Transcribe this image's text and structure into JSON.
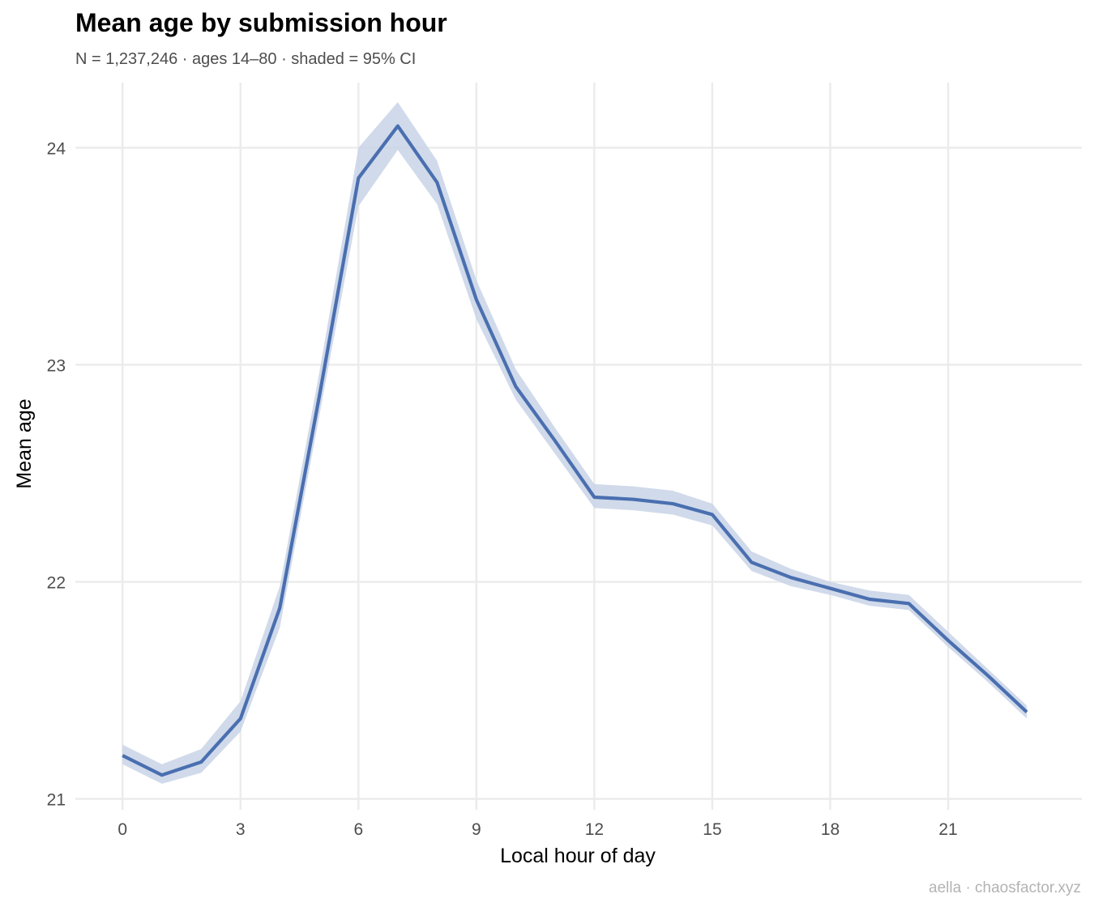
{
  "title": "Mean age by submission hour",
  "subtitle": "N = 1,237,246 · ages 14–80 · shaded = 95% CI",
  "caption": "aella · chaosfactor.xyz",
  "colors": {
    "line": "#4a6fb0",
    "band": "#c8d3e6",
    "grid": "#ebebeb",
    "background": "#ffffff"
  },
  "chart_data": {
    "type": "line",
    "xlabel": "Local hour of day",
    "ylabel": "Mean age",
    "xlim": [
      -1.2,
      24.4
    ],
    "ylim": [
      20.95,
      24.3
    ],
    "xticks": [
      0,
      3,
      6,
      9,
      12,
      15,
      18,
      21
    ],
    "yticks": [
      21,
      22,
      23,
      24
    ],
    "grid": true,
    "x": [
      0,
      1,
      2,
      3,
      4,
      5,
      6,
      7,
      8,
      9,
      10,
      11,
      12,
      13,
      14,
      15,
      16,
      17,
      18,
      19,
      20,
      21,
      22,
      23
    ],
    "series": [
      {
        "values": [
          21.2,
          21.11,
          21.17,
          21.37,
          21.88,
          22.85,
          23.86,
          24.1,
          23.84,
          23.3,
          22.9,
          22.65,
          22.39,
          22.38,
          22.36,
          22.31,
          22.09,
          22.02,
          21.97,
          21.92,
          21.9,
          21.73,
          21.57,
          21.4
        ],
        "ci_lower": [
          21.16,
          21.07,
          21.12,
          21.31,
          21.79,
          22.76,
          23.73,
          23.99,
          23.74,
          23.21,
          22.84,
          22.59,
          22.34,
          22.33,
          22.31,
          22.26,
          22.05,
          21.98,
          21.94,
          21.89,
          21.87,
          21.7,
          21.54,
          21.37
        ],
        "ci_upper": [
          21.25,
          21.16,
          21.23,
          21.45,
          21.98,
          22.96,
          24.0,
          24.21,
          23.94,
          23.39,
          22.98,
          22.71,
          22.45,
          22.44,
          22.42,
          22.36,
          22.14,
          22.06,
          22.0,
          21.96,
          21.94,
          21.77,
          21.6,
          21.43
        ]
      }
    ]
  }
}
